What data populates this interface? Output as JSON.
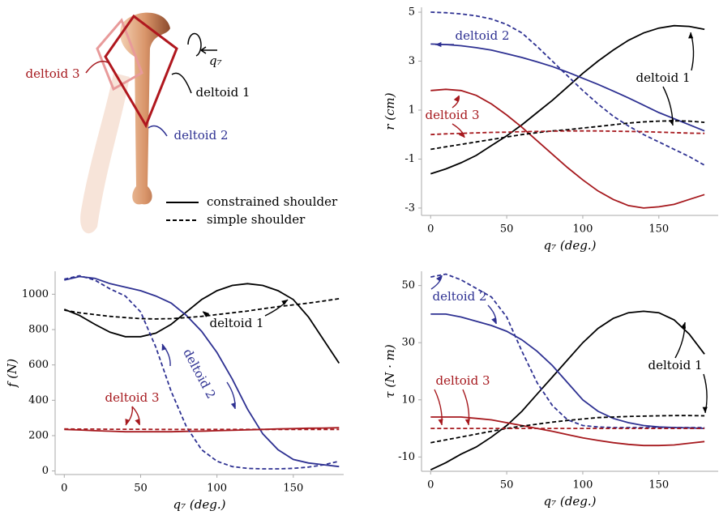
{
  "illustration": {
    "labels": [
      "deltoid 3",
      "deltoid 1",
      "deltoid 2"
    ],
    "rotation_label": "q₇"
  },
  "legend": [
    {
      "label": "constrained shoulder",
      "dash": "solid"
    },
    {
      "label": "simple shoulder",
      "dash": "dashed"
    }
  ],
  "chart_data": [
    {
      "type": "line",
      "xlabel": "q₇ (deg.)",
      "ylabel": "r (cm)",
      "x": [
        0,
        10,
        20,
        30,
        40,
        50,
        60,
        70,
        80,
        90,
        100,
        110,
        120,
        130,
        140,
        150,
        160,
        170,
        180
      ],
      "xlim": [
        -6,
        189
      ],
      "xticks": [
        0,
        50,
        100,
        150
      ],
      "ylim": [
        -3.3,
        5.2
      ],
      "yticks": [
        -3,
        -1,
        1,
        3,
        5
      ],
      "annotations": [
        "deltoid 1",
        "deltoid 2",
        "deltoid 3"
      ],
      "series": [
        {
          "color": "#000000",
          "dash": "solid",
          "values": [
            -1.6,
            -1.4,
            -1.15,
            -0.85,
            -0.45,
            -0.05,
            0.4,
            0.9,
            1.4,
            1.95,
            2.5,
            3.0,
            3.45,
            3.85,
            4.15,
            4.35,
            4.45,
            4.42,
            4.3
          ]
        },
        {
          "color": "#2e3192",
          "dash": "solid",
          "values": [
            3.7,
            3.68,
            3.63,
            3.55,
            3.45,
            3.3,
            3.15,
            2.97,
            2.78,
            2.55,
            2.3,
            2.05,
            1.78,
            1.5,
            1.2,
            0.9,
            0.65,
            0.4,
            0.15
          ]
        },
        {
          "color": "#a6191e",
          "dash": "solid",
          "values": [
            1.8,
            1.85,
            1.8,
            1.6,
            1.25,
            0.8,
            0.3,
            -0.25,
            -0.8,
            -1.35,
            -1.85,
            -2.3,
            -2.65,
            -2.9,
            -3.0,
            -2.95,
            -2.85,
            -2.65,
            -2.45
          ]
        },
        {
          "color": "#000000",
          "dash": "dashed",
          "values": [
            -0.6,
            -0.5,
            -0.4,
            -0.3,
            -0.2,
            -0.1,
            0.0,
            0.08,
            0.15,
            0.2,
            0.27,
            0.33,
            0.4,
            0.47,
            0.52,
            0.55,
            0.56,
            0.55,
            0.5
          ]
        },
        {
          "color": "#2e3192",
          "dash": "dashed",
          "values": [
            5.0,
            4.98,
            4.93,
            4.85,
            4.72,
            4.5,
            4.15,
            3.6,
            3.0,
            2.4,
            1.8,
            1.25,
            0.75,
            0.35,
            0.0,
            -0.3,
            -0.6,
            -0.9,
            -1.25
          ]
        },
        {
          "color": "#a6191e",
          "dash": "dashed",
          "values": [
            0,
            0.03,
            0.05,
            0.07,
            0.09,
            0.1,
            0.12,
            0.13,
            0.14,
            0.15,
            0.15,
            0.15,
            0.14,
            0.13,
            0.12,
            0.1,
            0.08,
            0.06,
            0.05
          ]
        }
      ]
    },
    {
      "type": "line",
      "xlabel": "q₇ (deg.)",
      "ylabel": "f (N)",
      "x": [
        0,
        10,
        20,
        30,
        40,
        50,
        60,
        70,
        80,
        90,
        100,
        110,
        120,
        130,
        140,
        150,
        160,
        170,
        180
      ],
      "xlim": [
        -6,
        183
      ],
      "xticks": [
        0,
        50,
        100,
        150
      ],
      "ylim": [
        -20,
        1130
      ],
      "yticks": [
        0,
        200,
        400,
        600,
        800,
        1000
      ],
      "annotations": [
        "deltoid 1",
        "deltoid 2",
        "deltoid 3"
      ],
      "series": [
        {
          "color": "#000000",
          "dash": "solid",
          "values": [
            915,
            880,
            830,
            785,
            760,
            760,
            780,
            830,
            900,
            970,
            1020,
            1050,
            1060,
            1050,
            1020,
            970,
            870,
            740,
            610
          ]
        },
        {
          "color": "#2e3192",
          "dash": "solid",
          "values": [
            1080,
            1100,
            1090,
            1060,
            1040,
            1020,
            990,
            950,
            880,
            790,
            670,
            520,
            350,
            210,
            120,
            65,
            45,
            35,
            25
          ]
        },
        {
          "color": "#a6191e",
          "dash": "solid",
          "values": [
            235,
            232,
            228,
            225,
            222,
            222,
            222,
            222,
            224,
            225,
            228,
            230,
            233,
            235,
            238,
            240,
            242,
            243,
            245
          ]
        },
        {
          "color": "#000000",
          "dash": "dashed",
          "values": [
            910,
            895,
            885,
            875,
            868,
            862,
            860,
            862,
            868,
            875,
            885,
            895,
            905,
            918,
            930,
            940,
            950,
            962,
            975
          ]
        },
        {
          "color": "#2e3192",
          "dash": "dashed",
          "values": [
            1085,
            1105,
            1080,
            1030,
            990,
            900,
            700,
            450,
            250,
            120,
            55,
            25,
            15,
            12,
            12,
            15,
            22,
            35,
            55
          ]
        },
        {
          "color": "#a6191e",
          "dash": "dashed",
          "values": [
            238,
            237,
            237,
            236,
            236,
            236,
            235,
            235,
            235,
            235,
            235,
            235,
            235,
            235,
            235,
            235,
            235,
            235,
            235
          ]
        }
      ]
    },
    {
      "type": "line",
      "xlabel": "q₇ (deg.)",
      "ylabel": "τ (N · m)",
      "x": [
        0,
        10,
        20,
        30,
        40,
        50,
        60,
        70,
        80,
        90,
        100,
        110,
        120,
        130,
        140,
        150,
        160,
        170,
        180
      ],
      "xlim": [
        -6,
        189
      ],
      "xticks": [
        0,
        50,
        100,
        150
      ],
      "ylim": [
        -15,
        55
      ],
      "yticks": [
        -10,
        10,
        30,
        50
      ],
      "annotations": [
        "deltoid 1",
        "deltoid 2",
        "deltoid 3"
      ],
      "series": [
        {
          "color": "#000000",
          "dash": "solid",
          "values": [
            -14.5,
            -12,
            -9,
            -6.5,
            -3,
            1,
            6,
            12,
            18,
            24,
            30,
            35,
            38.5,
            40.5,
            41,
            40.5,
            38,
            33,
            26
          ]
        },
        {
          "color": "#2e3192",
          "dash": "solid",
          "values": [
            40,
            40,
            39,
            37.5,
            36,
            34,
            31,
            27,
            22,
            16,
            10,
            6,
            3.5,
            2,
            1,
            0.5,
            0.3,
            0.2,
            0
          ]
        },
        {
          "color": "#a6191e",
          "dash": "solid",
          "values": [
            4,
            4,
            4,
            3.5,
            3,
            2,
            1,
            0,
            -1,
            -2.2,
            -3.3,
            -4.2,
            -5,
            -5.6,
            -6,
            -6,
            -5.8,
            -5.2,
            -4.6
          ]
        },
        {
          "color": "#000000",
          "dash": "dashed",
          "values": [
            -5,
            -4,
            -3,
            -2,
            -1,
            0,
            0.8,
            1.5,
            2.2,
            2.8,
            3.3,
            3.8,
            4,
            4.2,
            4.3,
            4.4,
            4.5,
            4.5,
            4.4
          ]
        },
        {
          "color": "#2e3192",
          "dash": "dashed",
          "values": [
            53,
            54,
            52,
            49,
            46,
            39,
            27,
            16,
            8,
            3,
            1,
            0.5,
            0.3,
            0.3,
            0.3,
            0.3,
            0.3,
            0.3,
            0.3
          ]
        },
        {
          "color": "#a6191e",
          "dash": "dashed",
          "values": [
            0,
            0,
            0,
            0,
            0,
            0,
            0,
            0,
            0,
            0,
            0,
            0,
            0,
            0,
            0,
            0,
            0,
            0,
            0
          ]
        }
      ]
    }
  ]
}
